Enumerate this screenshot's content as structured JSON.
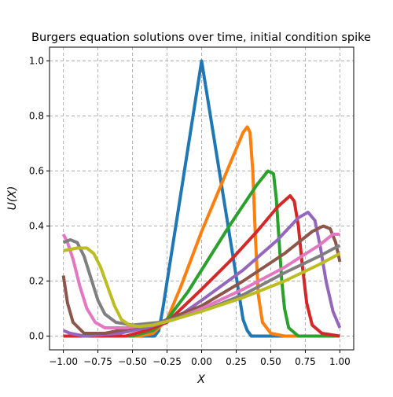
{
  "chart_data": {
    "type": "line",
    "title": "Burgers equation solutions over time, initial condition spike",
    "xlabel": "X",
    "ylabel": "U(X)",
    "xlim": [
      -1.1,
      1.1
    ],
    "ylim": [
      -0.05,
      1.05
    ],
    "x_ticks": [
      -1.0,
      -0.75,
      -0.5,
      -0.25,
      0.0,
      0.25,
      0.5,
      0.75,
      1.0
    ],
    "x_tick_labels": [
      "−1.00",
      "−0.75",
      "−0.50",
      "−0.25",
      "0.00",
      "0.25",
      "0.50",
      "0.75",
      "1.00"
    ],
    "y_ticks": [
      0.0,
      0.2,
      0.4,
      0.6,
      0.8,
      1.0
    ],
    "y_tick_labels": [
      "0.0",
      "0.2",
      "0.4",
      "0.6",
      "0.8",
      "1.0"
    ],
    "grid": true,
    "legend": "none",
    "series": [
      {
        "color": "#1f77b4",
        "points": [
          [
            -1.0,
            0.0
          ],
          [
            -0.34,
            0.0
          ],
          [
            -0.31,
            0.02
          ],
          [
            -0.28,
            0.1
          ],
          [
            0.0,
            1.0
          ],
          [
            0.3,
            0.06
          ],
          [
            0.33,
            0.02
          ],
          [
            0.36,
            0.0
          ],
          [
            1.0,
            0.0
          ]
        ]
      },
      {
        "color": "#ff7f0e",
        "points": [
          [
            -1.0,
            0.0
          ],
          [
            -0.45,
            0.0
          ],
          [
            -0.35,
            0.01
          ],
          [
            -0.25,
            0.06
          ],
          [
            -0.15,
            0.18
          ],
          [
            0.0,
            0.38
          ],
          [
            0.15,
            0.56
          ],
          [
            0.3,
            0.74
          ],
          [
            0.33,
            0.76
          ],
          [
            0.35,
            0.74
          ],
          [
            0.37,
            0.6
          ],
          [
            0.39,
            0.35
          ],
          [
            0.41,
            0.15
          ],
          [
            0.44,
            0.05
          ],
          [
            0.5,
            0.01
          ],
          [
            0.6,
            0.0
          ],
          [
            1.0,
            0.0
          ]
        ]
      },
      {
        "color": "#2ca02c",
        "points": [
          [
            -1.0,
            0.0
          ],
          [
            -0.5,
            0.0
          ],
          [
            -0.35,
            0.02
          ],
          [
            -0.25,
            0.06
          ],
          [
            -0.1,
            0.16
          ],
          [
            0.0,
            0.24
          ],
          [
            0.2,
            0.4
          ],
          [
            0.4,
            0.55
          ],
          [
            0.48,
            0.6
          ],
          [
            0.52,
            0.59
          ],
          [
            0.54,
            0.5
          ],
          [
            0.56,
            0.35
          ],
          [
            0.58,
            0.2
          ],
          [
            0.6,
            0.1
          ],
          [
            0.63,
            0.03
          ],
          [
            0.7,
            0.0
          ],
          [
            1.0,
            0.0
          ]
        ]
      },
      {
        "color": "#d62728",
        "points": [
          [
            -1.0,
            0.0
          ],
          [
            -0.55,
            0.0
          ],
          [
            -0.4,
            0.02
          ],
          [
            -0.25,
            0.05
          ],
          [
            0.0,
            0.17
          ],
          [
            0.2,
            0.27
          ],
          [
            0.4,
            0.38
          ],
          [
            0.55,
            0.47
          ],
          [
            0.64,
            0.51
          ],
          [
            0.67,
            0.49
          ],
          [
            0.7,
            0.4
          ],
          [
            0.73,
            0.25
          ],
          [
            0.76,
            0.12
          ],
          [
            0.8,
            0.04
          ],
          [
            0.87,
            0.01
          ],
          [
            1.0,
            0.0
          ]
        ]
      },
      {
        "color": "#9467bd",
        "points": [
          [
            -1.0,
            0.02
          ],
          [
            -0.95,
            0.01
          ],
          [
            -0.85,
            0.0
          ],
          [
            -0.6,
            0.01
          ],
          [
            -0.4,
            0.03
          ],
          [
            -0.2,
            0.06
          ],
          [
            0.0,
            0.13
          ],
          [
            0.3,
            0.24
          ],
          [
            0.55,
            0.35
          ],
          [
            0.7,
            0.43
          ],
          [
            0.77,
            0.45
          ],
          [
            0.82,
            0.42
          ],
          [
            0.86,
            0.32
          ],
          [
            0.9,
            0.2
          ],
          [
            0.95,
            0.09
          ],
          [
            1.0,
            0.03
          ]
        ]
      },
      {
        "color": "#8c564b",
        "points": [
          [
            -1.0,
            0.22
          ],
          [
            -0.97,
            0.12
          ],
          [
            -0.93,
            0.05
          ],
          [
            -0.85,
            0.01
          ],
          [
            -0.7,
            0.01
          ],
          [
            -0.5,
            0.03
          ],
          [
            -0.3,
            0.05
          ],
          [
            0.0,
            0.11
          ],
          [
            0.3,
            0.2
          ],
          [
            0.6,
            0.3
          ],
          [
            0.8,
            0.38
          ],
          [
            0.88,
            0.4
          ],
          [
            0.93,
            0.39
          ],
          [
            0.97,
            0.34
          ],
          [
            1.0,
            0.27
          ]
        ]
      },
      {
        "color": "#e377c2",
        "points": [
          [
            -1.0,
            0.37
          ],
          [
            -0.97,
            0.34
          ],
          [
            -0.93,
            0.28
          ],
          [
            -0.88,
            0.18
          ],
          [
            -0.83,
            0.1
          ],
          [
            -0.77,
            0.05
          ],
          [
            -0.7,
            0.03
          ],
          [
            -0.55,
            0.03
          ],
          [
            -0.4,
            0.04
          ],
          [
            -0.2,
            0.06
          ],
          [
            0.0,
            0.1
          ],
          [
            0.3,
            0.17
          ],
          [
            0.6,
            0.25
          ],
          [
            0.85,
            0.33
          ],
          [
            0.95,
            0.37
          ],
          [
            1.0,
            0.37
          ]
        ]
      },
      {
        "color": "#7f7f7f",
        "points": [
          [
            -1.0,
            0.34
          ],
          [
            -0.95,
            0.35
          ],
          [
            -0.9,
            0.34
          ],
          [
            -0.85,
            0.29
          ],
          [
            -0.8,
            0.21
          ],
          [
            -0.75,
            0.13
          ],
          [
            -0.7,
            0.08
          ],
          [
            -0.62,
            0.05
          ],
          [
            -0.5,
            0.04
          ],
          [
            -0.3,
            0.05
          ],
          [
            0.0,
            0.09
          ],
          [
            0.3,
            0.15
          ],
          [
            0.6,
            0.23
          ],
          [
            0.85,
            0.29
          ],
          [
            1.0,
            0.33
          ]
        ]
      },
      {
        "color": "#bcbd22",
        "points": [
          [
            -1.0,
            0.31
          ],
          [
            -0.9,
            0.32
          ],
          [
            -0.83,
            0.32
          ],
          [
            -0.78,
            0.3
          ],
          [
            -0.73,
            0.25
          ],
          [
            -0.68,
            0.18
          ],
          [
            -0.63,
            0.11
          ],
          [
            -0.58,
            0.06
          ],
          [
            -0.52,
            0.04
          ],
          [
            -0.45,
            0.035
          ],
          [
            -0.35,
            0.04
          ],
          [
            -0.2,
            0.06
          ],
          [
            0.0,
            0.09
          ],
          [
            0.3,
            0.14
          ],
          [
            0.6,
            0.2
          ],
          [
            0.85,
            0.26
          ],
          [
            1.0,
            0.3
          ]
        ]
      }
    ]
  }
}
